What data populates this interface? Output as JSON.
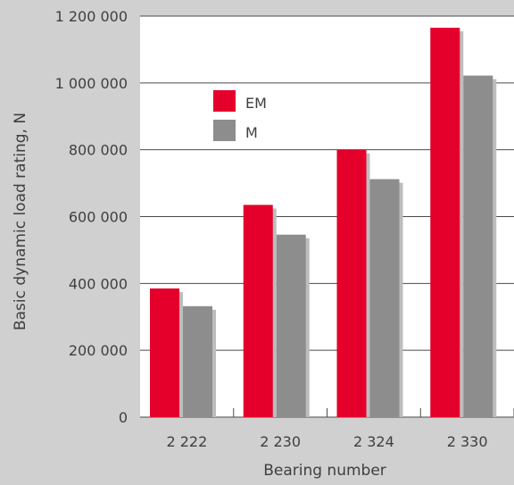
{
  "chart_data": {
    "type": "bar",
    "categories": [
      "2 222",
      "2 230",
      "2 324",
      "2 330"
    ],
    "series": [
      {
        "name": "EM",
        "values": [
          385000,
          635000,
          800000,
          1165000
        ],
        "color": "#e4002b"
      },
      {
        "name": "M",
        "values": [
          332000,
          546000,
          712000,
          1022000
        ],
        "color": "#8d8d8d"
      }
    ],
    "title": "",
    "xlabel": "Bearing number",
    "ylabel": "Basic dynamic load rating, N",
    "ylim": [
      0,
      1200000
    ],
    "ytick_labels": [
      "0",
      "200 000",
      "400 000",
      "600 000",
      "800 000",
      "1 000 000",
      "1 200 000"
    ],
    "grid": true,
    "legend": "top-left"
  },
  "colors": {
    "background": "#d0d0d0",
    "plot_area": "#ffffff",
    "grid": "#4a4a4a",
    "text": "#3f3f3f",
    "shadow": "#bdbdbd"
  }
}
